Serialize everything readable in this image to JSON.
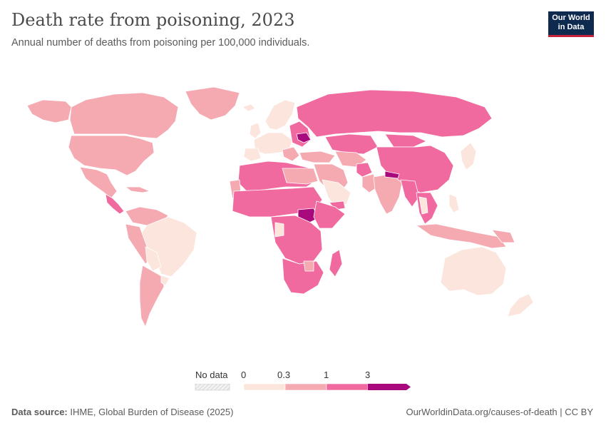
{
  "header": {
    "title": "Death rate from poisoning, 2023",
    "subtitle": "Annual number of deaths from poisoning per 100,000 individuals."
  },
  "logo": {
    "line1": "Our World",
    "line2": "in Data",
    "bg_color": "#0e2a4f",
    "accent_color": "#c8213a"
  },
  "legend": {
    "no_data_label": "No data",
    "bins": [
      "0",
      "0.3",
      "1",
      "3"
    ],
    "colors": [
      "#fbe5dc",
      "#f5aab2",
      "#f06aa0",
      "#a8097c"
    ],
    "no_data_color": "#e8e8e8"
  },
  "map_colors": {
    "low": "#fbe5dc",
    "mid": "#f5aab2",
    "high": "#f06aa0",
    "very_high": "#a8097c",
    "border": "#ffffff"
  },
  "footer": {
    "source_label": "Data source:",
    "source_text": "IHME, Global Burden of Disease (2025)",
    "url": "OurWorldinData.org/causes-of-death | CC BY"
  }
}
